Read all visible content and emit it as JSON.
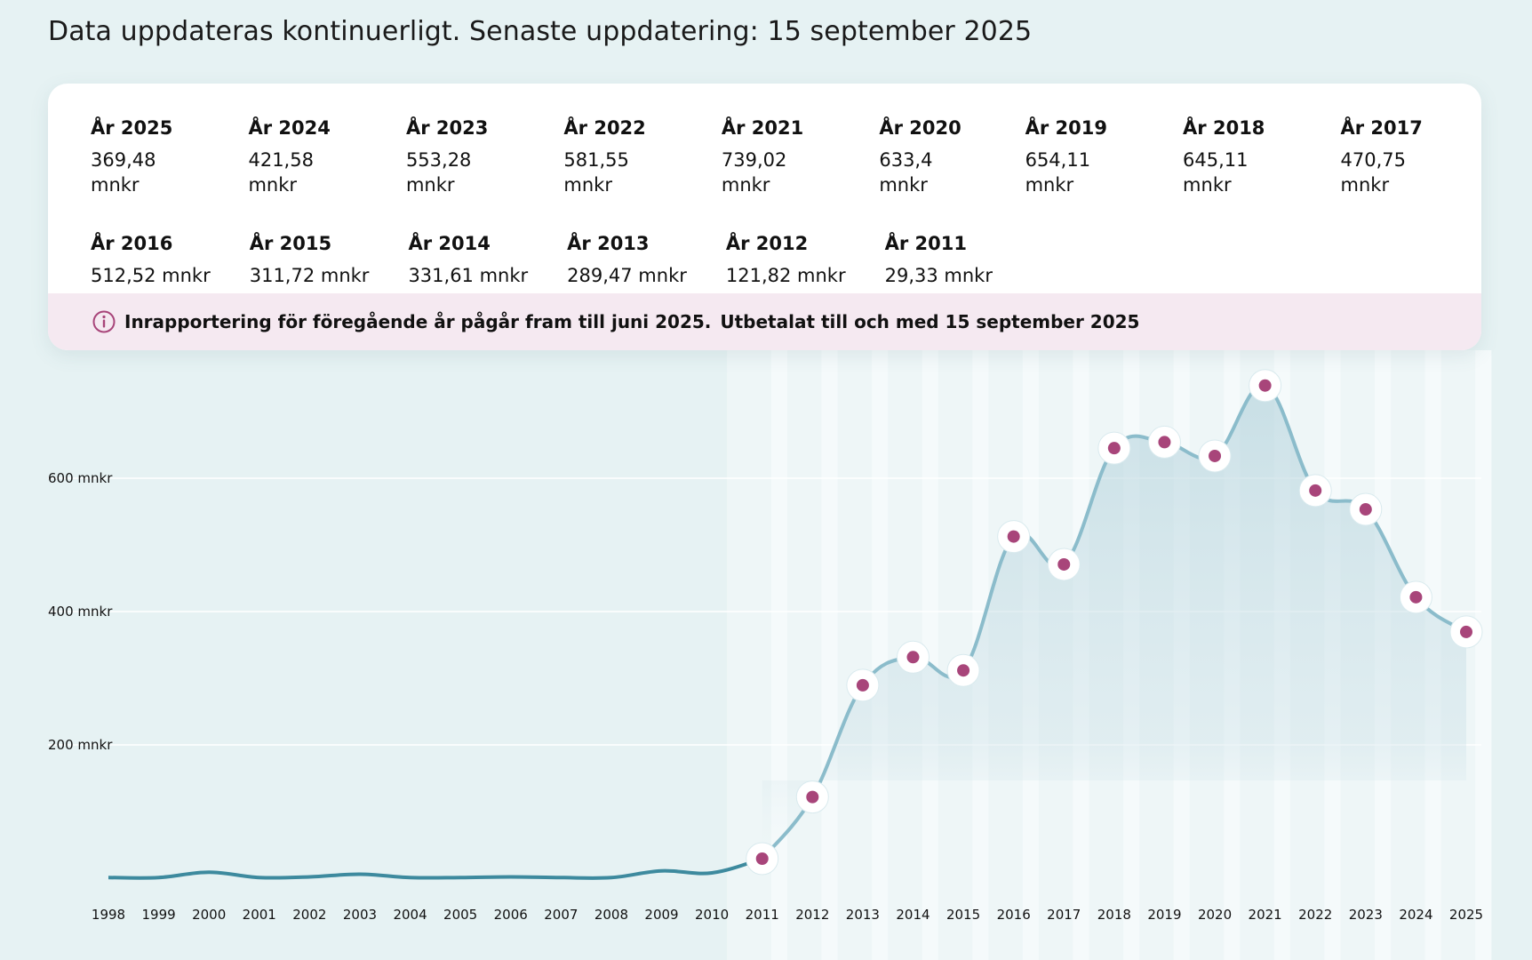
{
  "header": {
    "text": "Data uppdateras kontinuerligt. Senaste uppdatering: 15 september 2025"
  },
  "summary": {
    "rows": [
      [
        {
          "label": "År 2025",
          "value": "369,48 mnkr"
        },
        {
          "label": "År 2024",
          "value": "421,58 mnkr"
        },
        {
          "label": "År 2023",
          "value": "553,28 mnkr"
        },
        {
          "label": "År 2022",
          "value": "581,55 mnkr"
        },
        {
          "label": "År 2021",
          "value": "739,02 mnkr"
        },
        {
          "label": "År 2020",
          "value": "633,4 mnkr"
        },
        {
          "label": "År 2019",
          "value": "654,11 mnkr"
        },
        {
          "label": "År 2018",
          "value": "645,11 mnkr"
        },
        {
          "label": "År 2017",
          "value": "470,75 mnkr"
        }
      ],
      [
        {
          "label": "År 2016",
          "value": "512,52 mnkr"
        },
        {
          "label": "År 2015",
          "value": "311,72 mnkr"
        },
        {
          "label": "År 2014",
          "value": "331,61 mnkr"
        },
        {
          "label": "År 2013",
          "value": "289,47 mnkr"
        },
        {
          "label": "År 2012",
          "value": "121,82 mnkr"
        },
        {
          "label": "År 2011",
          "value": "29,33 mnkr"
        }
      ]
    ]
  },
  "notice": {
    "icon": "info-icon",
    "text_1": "Inrapportering för föregående år pågår fram till juni 2025.",
    "text_2": "Utbetalat till och med 15 september 2025"
  },
  "colors": {
    "page_bg": "#e6f2f3",
    "line": "#8bbccb",
    "line_early": "#3d8a9e",
    "marker": "#a8457a",
    "notice_bg": "#f5e9f1"
  },
  "chart_data": {
    "type": "line",
    "x": [
      1998,
      1999,
      2000,
      2001,
      2002,
      2003,
      2004,
      2005,
      2006,
      2007,
      2008,
      2009,
      2010,
      2011,
      2012,
      2013,
      2014,
      2015,
      2016,
      2017,
      2018,
      2019,
      2020,
      2021,
      2022,
      2023,
      2024,
      2025
    ],
    "x_labels": [
      "1998",
      "1999",
      "2000",
      "2001",
      "2002",
      "2003",
      "2004",
      "2005",
      "2006",
      "2007",
      "2008",
      "2009",
      "2010",
      "2011",
      "2012",
      "2013",
      "2014",
      "2015",
      "2016",
      "2017",
      "2018",
      "2019",
      "2020",
      "2021",
      "2022",
      "2023",
      "2024",
      "2025"
    ],
    "values": [
      1,
      1,
      9,
      1,
      2,
      6,
      1,
      1,
      2,
      1,
      1,
      11,
      8,
      29.33,
      121.82,
      289.47,
      331.61,
      311.72,
      512.52,
      470.75,
      645.11,
      654.11,
      633.4,
      739.02,
      581.55,
      553.28,
      421.58,
      369.48
    ],
    "highlighted_from": 2011,
    "y_ticks": [
      200,
      400,
      600
    ],
    "y_tick_labels": [
      "200 mnkr",
      "400 mnkr",
      "600 mnkr"
    ],
    "ylim": [
      0,
      800
    ],
    "grid": true
  }
}
